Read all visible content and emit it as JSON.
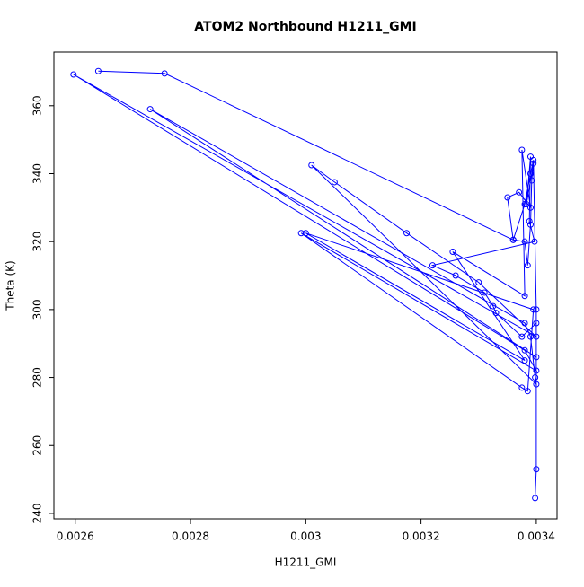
{
  "chart_data": {
    "type": "line",
    "title": "ATOM2 Northbound H1211_GMI",
    "x_label": "H1211_GMI",
    "y_label": "Theta (K)",
    "color": "#0000ff",
    "markers": true,
    "x": [
      0.00264,
      0.002755,
      0.00336,
      0.00338,
      0.00339,
      0.003395,
      0.0034,
      0.0034,
      0.00273,
      0.00338,
      0.00339,
      0.003398,
      0.0034,
      0.00301,
      0.00305,
      0.003175,
      0.0033,
      0.0034,
      0.002597,
      0.00338,
      0.0034,
      0.002992,
      0.003375,
      0.003385,
      0.003395,
      0.003,
      0.00338,
      0.003255,
      0.00338,
      0.003375,
      0.00339,
      0.00337,
      0.00335,
      0.00336,
      0.00338,
      0.003385,
      0.00339,
      0.003392,
      0.003395,
      0.003383,
      0.00339,
      0.003388,
      0.003397,
      0.00322,
      0.00326,
      0.00331,
      0.003325,
      0.00333,
      0.003375,
      0.0034,
      0.0034,
      0.003398
    ],
    "y": [
      370.2,
      369.5,
      320.5,
      331,
      340,
      344,
      300,
      286,
      359,
      296,
      292,
      280,
      278,
      342.5,
      337.5,
      322.5,
      308,
      292,
      369.2,
      288,
      282,
      322.5,
      277,
      276,
      300,
      322.5,
      285,
      317,
      304,
      347,
      330,
      334.5,
      333,
      320.5,
      320,
      313,
      325,
      338,
      343,
      331,
      345,
      326,
      320,
      313,
      310,
      305,
      301,
      299,
      292,
      296,
      253,
      244.5
    ],
    "xlim": [
      0.002563,
      0.003436
    ],
    "ylim": [
      238.4,
      375.8
    ],
    "xticks": [
      0.0026,
      0.0028,
      0.003,
      0.0032,
      0.0034
    ],
    "yticks": [
      240,
      260,
      280,
      300,
      320,
      340,
      360
    ]
  }
}
